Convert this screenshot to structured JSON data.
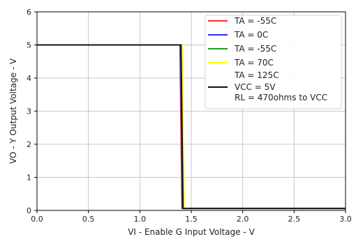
{
  "chart_data": {
    "type": "line",
    "xlabel": "VI - Enable G Input Voltage - V",
    "ylabel": "VO - Y Output Voltage - V",
    "xlim": [
      0.0,
      3.0
    ],
    "ylim": [
      0,
      6
    ],
    "xticks": [
      "0.0",
      "0.5",
      "1.0",
      "1.5",
      "2.0",
      "2.5",
      "3.0"
    ],
    "yticks": [
      "0",
      "1",
      "2",
      "3",
      "4",
      "5",
      "6"
    ],
    "grid": true,
    "legend_position": "top-right",
    "series": [
      {
        "name": "TA = -55C",
        "color": "#ff2a2a",
        "x": [
          0.0,
          1.39,
          1.41,
          3.0
        ],
        "y": [
          5.0,
          5.0,
          0.06,
          0.06
        ]
      },
      {
        "name": "TA = 0C",
        "color": "#2b2bff",
        "x": [
          0.0,
          1.395,
          1.415,
          3.0
        ],
        "y": [
          5.0,
          5.0,
          0.06,
          0.06
        ]
      },
      {
        "name": "TA = -55C",
        "color": "#20a020",
        "x": [
          0.0,
          1.4,
          1.42,
          3.0
        ],
        "y": [
          5.0,
          5.0,
          0.06,
          0.06
        ]
      },
      {
        "name": "TA = 70C",
        "color": "#ffff00",
        "x": [
          0.0,
          1.41,
          1.43,
          3.0
        ],
        "y": [
          5.0,
          5.0,
          0.06,
          0.06
        ]
      },
      {
        "name": "TA = 125C",
        "color": null,
        "x": [],
        "y": []
      },
      {
        "name": "VCC = 5V\nRL = 470ohms to VCC",
        "color": "#111111",
        "x": [
          0.0,
          1.4,
          1.42,
          3.0
        ],
        "y": [
          5.0,
          5.0,
          0.06,
          0.06
        ]
      }
    ]
  }
}
